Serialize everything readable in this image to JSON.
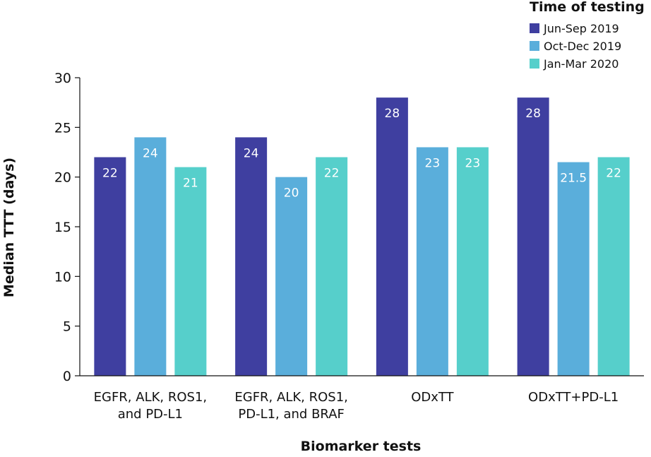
{
  "chart_data": {
    "type": "bar",
    "title": "",
    "xlabel": "Biomarker tests",
    "ylabel": "Median TTT (days)",
    "ylim": [
      0,
      30
    ],
    "yticks": [
      0,
      5,
      10,
      15,
      20,
      25,
      30
    ],
    "grid": false,
    "categories": [
      [
        "EGFR, ALK, ROS1,",
        "and PD-L1"
      ],
      [
        "EGFR, ALK, ROS1,",
        "PD-L1, and BRAF"
      ],
      [
        "ODxTT"
      ],
      [
        "ODxTT+PD-L1"
      ]
    ],
    "legend": {
      "title": "Time of testing",
      "position": "top-right"
    },
    "series": [
      {
        "name": "Jun-Sep 2019",
        "color": "#3f3fa0",
        "values": [
          22,
          24,
          28,
          28
        ],
        "labels": [
          "22",
          "24",
          "28",
          "28"
        ]
      },
      {
        "name": "Oct-Dec 2019",
        "color": "#5aaedb",
        "values": [
          24,
          20,
          23,
          21.5
        ],
        "labels": [
          "24",
          "20",
          "23",
          "21.5"
        ]
      },
      {
        "name": "Jan-Mar 2020",
        "color": "#56cfcb",
        "values": [
          21,
          22,
          23,
          22
        ],
        "labels": [
          "21",
          "22",
          "23",
          "22"
        ]
      }
    ]
  }
}
